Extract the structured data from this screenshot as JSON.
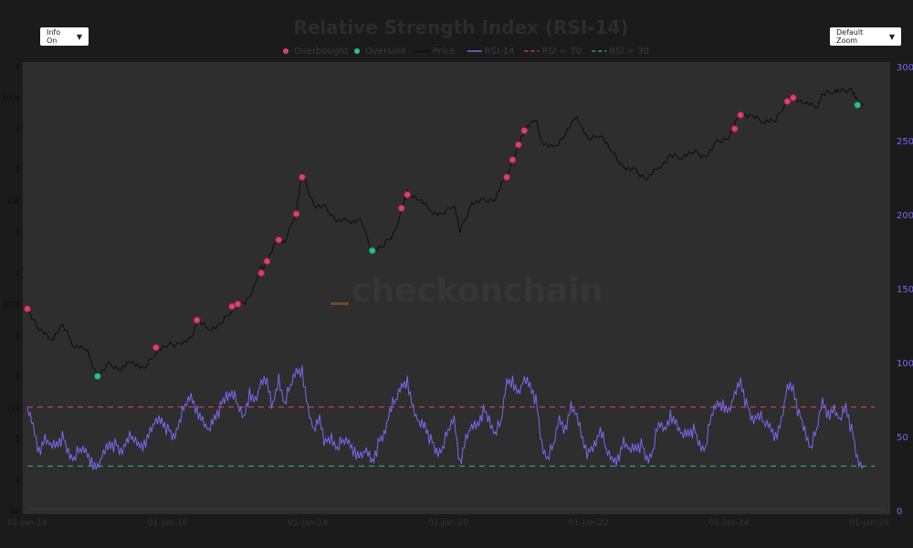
{
  "controls": {
    "info_label": "Info On",
    "zoom_label": "Default Zoom",
    "caret": "▼"
  },
  "watermark": "checkonchain",
  "colors": {
    "background": "#1b1b1b",
    "plot": "#2e2e2e",
    "overbought": "#d6446b",
    "oversold": "#2ec27e",
    "price": "#0d0d0d",
    "rsi": "#7b68ee",
    "rsi70": "#c2405e",
    "rsi30": "#2f9e78"
  },
  "chart_data": {
    "type": "line",
    "title": "Relative Strength Index (RSI-14)",
    "legend": [
      "Overbought",
      "Oversold",
      "Price",
      "RSI-14",
      "RSI = 70",
      "RSI = 30"
    ],
    "legend_placement": "top-center",
    "y_left": {
      "scale": "log",
      "range": [
        10,
        200000
      ],
      "ticks": [
        {
          "v": 200000,
          "l": "2"
        },
        {
          "v": 100000,
          "l": "100k"
        },
        {
          "v": 50000,
          "l": "5"
        },
        {
          "v": 20000,
          "l": "2"
        },
        {
          "v": 10000,
          "l": "10k"
        },
        {
          "v": 5000,
          "l": "5"
        },
        {
          "v": 2000,
          "l": "2"
        },
        {
          "v": 1000,
          "l": "1000"
        },
        {
          "v": 500,
          "l": "5"
        },
        {
          "v": 200,
          "l": "2"
        },
        {
          "v": 100,
          "l": "100"
        },
        {
          "v": 50,
          "l": "5"
        },
        {
          "v": 20,
          "l": "2"
        },
        {
          "v": 10,
          "l": "10"
        }
      ]
    },
    "y_right": {
      "scale": "linear",
      "range": [
        0,
        300
      ],
      "ticks": [
        "300",
        "250",
        "200",
        "150",
        "100",
        "50",
        "0"
      ]
    },
    "x_ticks": [
      {
        "d": "2014-01",
        "l": "01-Jan-14"
      },
      {
        "d": "2016-01",
        "l": "01-Jan-16"
      },
      {
        "d": "2018-01",
        "l": "01-Jan-18"
      },
      {
        "d": "2020-01",
        "l": "01-Jan-20"
      },
      {
        "d": "2022-01",
        "l": "01-Jan-22"
      },
      {
        "d": "2024-01",
        "l": "01-Jan-24"
      },
      {
        "d": "2026-01",
        "l": "01-Jan-26"
      }
    ],
    "price": [
      [
        "2014-01",
        900
      ],
      [
        "2014-03",
        580
      ],
      [
        "2014-05",
        450
      ],
      [
        "2014-07",
        620
      ],
      [
        "2014-09",
        400
      ],
      [
        "2014-11",
        370
      ],
      [
        "2015-01",
        200
      ],
      [
        "2015-03",
        260
      ],
      [
        "2015-05",
        235
      ],
      [
        "2015-07",
        280
      ],
      [
        "2015-09",
        230
      ],
      [
        "2015-11",
        350
      ],
      [
        "2016-01",
        400
      ],
      [
        "2016-03",
        415
      ],
      [
        "2016-05",
        450
      ],
      [
        "2016-06",
        700
      ],
      [
        "2016-08",
        570
      ],
      [
        "2016-10",
        620
      ],
      [
        "2016-12",
        900
      ],
      [
        "2017-01",
        950
      ],
      [
        "2017-03",
        1150
      ],
      [
        "2017-05",
        2200
      ],
      [
        "2017-06",
        2600
      ],
      [
        "2017-08",
        4500
      ],
      [
        "2017-09",
        3800
      ],
      [
        "2017-11",
        8000
      ],
      [
        "2017-12",
        19000
      ],
      [
        "2018-02",
        9000
      ],
      [
        "2018-04",
        8500
      ],
      [
        "2018-06",
        6500
      ],
      [
        "2018-08",
        6400
      ],
      [
        "2018-10",
        6400
      ],
      [
        "2018-12",
        3300
      ],
      [
        "2019-02",
        3700
      ],
      [
        "2019-04",
        5200
      ],
      [
        "2019-06",
        12000
      ],
      [
        "2019-08",
        10500
      ],
      [
        "2019-10",
        8000
      ],
      [
        "2019-12",
        7200
      ],
      [
        "2020-02",
        9500
      ],
      [
        "2020-03",
        5000
      ],
      [
        "2020-05",
        9500
      ],
      [
        "2020-07",
        10000
      ],
      [
        "2020-09",
        10500
      ],
      [
        "2020-11",
        18000
      ],
      [
        "2021-01",
        33000
      ],
      [
        "2021-02",
        50000
      ],
      [
        "2021-04",
        62000
      ],
      [
        "2021-05",
        37000
      ],
      [
        "2021-07",
        32000
      ],
      [
        "2021-09",
        45000
      ],
      [
        "2021-11",
        66000
      ],
      [
        "2022-01",
        38000
      ],
      [
        "2022-03",
        45000
      ],
      [
        "2022-05",
        30000
      ],
      [
        "2022-07",
        21000
      ],
      [
        "2022-09",
        19500
      ],
      [
        "2022-11",
        16500
      ],
      [
        "2023-01",
        21000
      ],
      [
        "2023-03",
        27000
      ],
      [
        "2023-05",
        27000
      ],
      [
        "2023-07",
        30000
      ],
      [
        "2023-09",
        26500
      ],
      [
        "2023-11",
        37000
      ],
      [
        "2024-01",
        42000
      ],
      [
        "2024-03",
        70000
      ],
      [
        "2024-05",
        65000
      ],
      [
        "2024-07",
        60000
      ],
      [
        "2024-09",
        60000
      ],
      [
        "2024-11",
        95000
      ],
      [
        "2024-12",
        100000
      ],
      [
        "2025-02",
        90000
      ],
      [
        "2025-04",
        80000
      ],
      [
        "2025-05",
        105000
      ],
      [
        "2025-07",
        118000
      ],
      [
        "2025-08",
        115000
      ],
      [
        "2025-10",
        120000
      ],
      [
        "2025-11",
        90000
      ],
      [
        "2025-12",
        87000
      ]
    ],
    "rsi_start": "2014-01",
    "rsi_monthly": [
      70,
      55,
      40,
      50,
      45,
      42,
      50,
      40,
      35,
      42,
      38,
      33,
      30,
      40,
      42,
      45,
      40,
      48,
      50,
      42,
      45,
      55,
      62,
      58,
      55,
      50,
      60,
      72,
      75,
      68,
      62,
      55,
      60,
      70,
      78,
      80,
      72,
      60,
      80,
      75,
      88,
      85,
      70,
      90,
      72,
      85,
      92,
      95,
      70,
      55,
      60,
      45,
      50,
      42,
      48,
      44,
      40,
      38,
      42,
      30,
      45,
      52,
      68,
      75,
      82,
      88,
      70,
      60,
      55,
      48,
      40,
      42,
      55,
      60,
      32,
      50,
      58,
      55,
      68,
      62,
      52,
      60,
      85,
      88,
      80,
      90,
      82,
      75,
      45,
      35,
      45,
      60,
      55,
      72,
      65,
      45,
      38,
      45,
      55,
      42,
      32,
      35,
      48,
      42,
      40,
      45,
      35,
      40,
      60,
      52,
      65,
      60,
      52,
      50,
      55,
      45,
      42,
      65,
      70,
      72,
      68,
      80,
      85,
      72,
      62,
      65,
      60,
      55,
      50,
      62,
      85,
      80,
      65,
      55,
      42,
      55,
      72,
      65,
      70,
      62,
      68,
      55,
      35,
      30
    ],
    "overbought": [
      [
        "2014-01",
        900
      ],
      [
        "2015-11",
        380
      ],
      [
        "2016-06",
        700
      ],
      [
        "2016-12",
        950
      ],
      [
        "2017-01",
        1000
      ],
      [
        "2017-05",
        2000
      ],
      [
        "2017-06",
        2600
      ],
      [
        "2017-08",
        4200
      ],
      [
        "2017-11",
        7500
      ],
      [
        "2017-12",
        17000
      ],
      [
        "2019-05",
        8500
      ],
      [
        "2019-06",
        11500
      ],
      [
        "2020-11",
        17000
      ],
      [
        "2020-12",
        25000
      ],
      [
        "2021-01",
        35000
      ],
      [
        "2021-02",
        48000
      ],
      [
        "2024-02",
        50000
      ],
      [
        "2024-03",
        68000
      ],
      [
        "2024-11",
        92000
      ],
      [
        "2024-12",
        100000
      ]
    ],
    "oversold": [
      [
        "2015-01",
        200
      ],
      [
        "2018-12",
        3300
      ],
      [
        "2025-11",
        85000
      ]
    ],
    "rsi_levels": [
      70,
      30
    ]
  }
}
